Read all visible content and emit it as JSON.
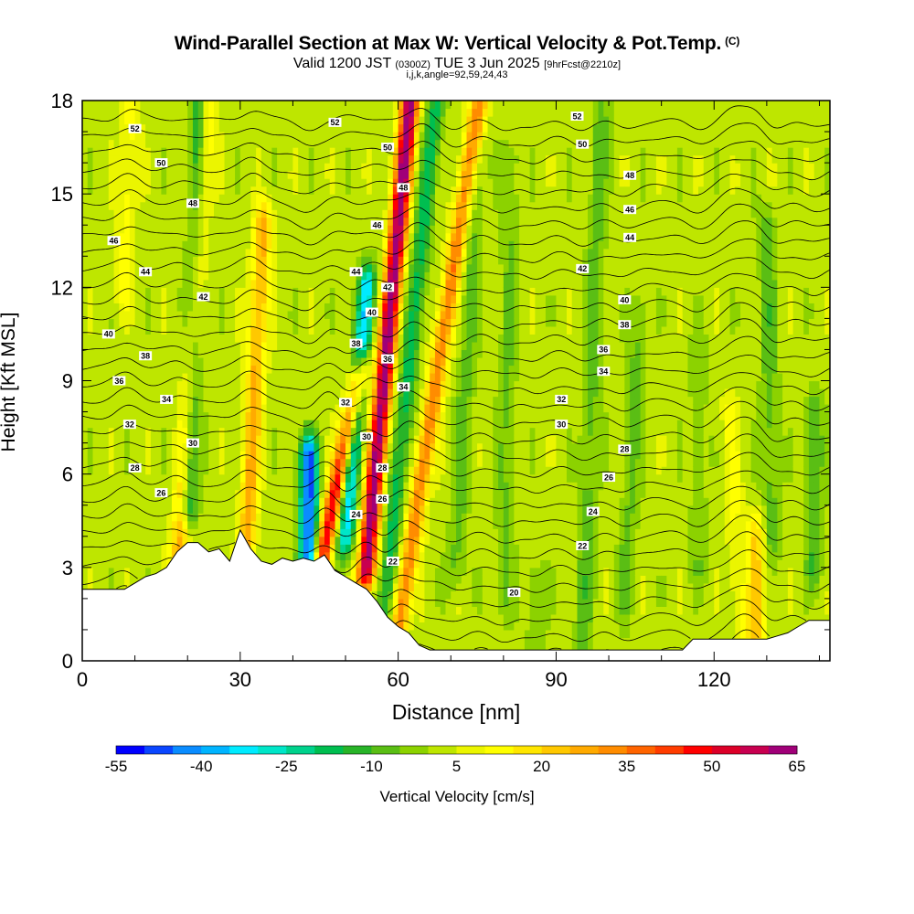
{
  "header": {
    "title": "Wind-Parallel Section at Max W: Vertical Velocity & Pot.Temp.",
    "copyright": "(C)",
    "valid_main": "Valid 1200 JST",
    "valid_utc": "(0300Z)",
    "valid_date": "TUE 3 Jun 2025",
    "fcst": "[9hrFcst@2210z]",
    "indices": "i,j,k,angle=92,59,24,43"
  },
  "chart_data": {
    "type": "heatmap",
    "title": "Wind-Parallel Section at Max W: Vertical Velocity & Pot.Temp.",
    "xlabel": "Distance [nm]",
    "ylabel": "Height [Kft MSL]",
    "xlim": [
      0,
      142
    ],
    "ylim": [
      0,
      18
    ],
    "x_ticks": [
      0,
      30,
      60,
      90,
      120
    ],
    "y_ticks": [
      0,
      3,
      6,
      9,
      12,
      15,
      18
    ],
    "colorbar": {
      "label": "Vertical Velocity [cm/s]",
      "tick_labels": [
        "-55",
        "-40",
        "-25",
        "-10",
        "5",
        "20",
        "35",
        "50",
        "65"
      ],
      "bounds": [
        -55,
        65
      ],
      "step": 5,
      "colors": [
        "#0000ff",
        "#0a46ff",
        "#0a8cff",
        "#00b4ff",
        "#00ebff",
        "#00e6c8",
        "#00d28c",
        "#00be50",
        "#28b428",
        "#5abe14",
        "#8cd200",
        "#bee600",
        "#ebf500",
        "#ffff00",
        "#ffe600",
        "#ffc800",
        "#ffaa00",
        "#ff8c00",
        "#ff6400",
        "#ff3c00",
        "#ff0000",
        "#dc0028",
        "#c80050",
        "#a00078"
      ]
    },
    "background_w": 0,
    "updrafts": [
      {
        "x": 18,
        "z0": 2,
        "z1": 18,
        "w": 28,
        "lean": 0.35
      },
      {
        "x": 31,
        "z0": 3,
        "z1": 14,
        "w": 25,
        "lean": 0.3
      },
      {
        "x": 44,
        "z0": 2,
        "z1": 9,
        "w": 48,
        "lean": 1.2
      },
      {
        "x": 54,
        "z0": 3,
        "z1": 18,
        "w": 62,
        "lean": 0.55
      },
      {
        "x": 60,
        "z0": 1,
        "z1": 18,
        "w": 32,
        "lean": 0.9
      },
      {
        "x": 128,
        "z0": 0.5,
        "z1": 4,
        "w": 18,
        "lean": 0
      },
      {
        "x": 125,
        "z0": 1,
        "z1": 8,
        "w": 8,
        "lean": -0.3
      },
      {
        "x": 8,
        "z0": 12,
        "z1": 18,
        "w": 10,
        "lean": 0.2
      }
    ],
    "downdrafts": [
      {
        "x": 20,
        "z0": 5,
        "z1": 18,
        "w": -30,
        "lean": 0.2
      },
      {
        "x": 43,
        "z0": 3,
        "z1": 6.5,
        "w": -50,
        "lean": 0
      },
      {
        "x": 50,
        "z0": 4,
        "z1": 12,
        "w": -35,
        "lean": 0.5
      },
      {
        "x": 57,
        "z0": 1,
        "z1": 18,
        "w": -20,
        "lean": 0.6
      },
      {
        "x": 71,
        "z0": 3,
        "z1": 16,
        "w": -10,
        "lean": 0.3
      },
      {
        "x": 80,
        "z0": 2,
        "z1": 16,
        "w": -8,
        "lean": 0.1
      },
      {
        "x": 95,
        "z0": 0.5,
        "z1": 18,
        "w": -10,
        "lean": 0.2
      },
      {
        "x": 103,
        "z0": 2,
        "z1": 11,
        "w": -9,
        "lean": 0.3
      },
      {
        "x": 117,
        "z0": 3,
        "z1": 10,
        "w": -6,
        "lean": 0
      },
      {
        "x": 131,
        "z0": 4,
        "z1": 14,
        "w": -10,
        "lean": -0.1
      },
      {
        "x": 139,
        "z0": 3,
        "z1": 8,
        "w": -12,
        "lean": 0
      },
      {
        "x": 86,
        "z0": 0.5,
        "z1": 2.5,
        "w": -8,
        "lean": 0
      }
    ],
    "terrain_nm": [
      0,
      2,
      4,
      6,
      8,
      10,
      12,
      14,
      16,
      18,
      20,
      22,
      24,
      26,
      28,
      30,
      32,
      34,
      36,
      38,
      40,
      42,
      44,
      46,
      48,
      50,
      52,
      54,
      56,
      58,
      60,
      62,
      64,
      66,
      68,
      70,
      72,
      74,
      76,
      78,
      80,
      82,
      84,
      86,
      88,
      90,
      92,
      94,
      96,
      98,
      100,
      102,
      104,
      106,
      108,
      110,
      112,
      114,
      116,
      118,
      120,
      122,
      124,
      126,
      128,
      130,
      132,
      134,
      136,
      138,
      140,
      142
    ],
    "terrain_kft": [
      2.3,
      2.3,
      2.3,
      2.3,
      2.3,
      2.5,
      2.7,
      2.8,
      3.0,
      3.5,
      3.8,
      3.8,
      3.5,
      3.6,
      3.2,
      4.2,
      3.6,
      3.2,
      3.1,
      3.3,
      3.2,
      3.3,
      3.2,
      3.4,
      2.9,
      2.7,
      2.5,
      2.3,
      1.9,
      1.4,
      1.1,
      0.9,
      0.5,
      0.35,
      0.35,
      0.35,
      0.35,
      0.35,
      0.35,
      0.35,
      0.35,
      0.35,
      0.35,
      0.35,
      0.35,
      0.35,
      0.35,
      0.35,
      0.35,
      0.35,
      0.35,
      0.35,
      0.35,
      0.35,
      0.35,
      0.35,
      0.35,
      0.35,
      0.7,
      0.7,
      0.7,
      0.7,
      0.7,
      0.7,
      0.7,
      0.7,
      0.8,
      0.9,
      1.1,
      1.3,
      1.3,
      1.3
    ],
    "theta": {
      "min": 20,
      "max": 52,
      "step": 1,
      "labels": [
        {
          "text": "52",
          "x": 10,
          "z": 17.1
        },
        {
          "text": "50",
          "x": 15,
          "z": 16.0
        },
        {
          "text": "48",
          "x": 21,
          "z": 14.7
        },
        {
          "text": "46",
          "x": 6,
          "z": 13.5
        },
        {
          "text": "44",
          "x": 12,
          "z": 12.5
        },
        {
          "text": "42",
          "x": 23,
          "z": 11.7
        },
        {
          "text": "40",
          "x": 5,
          "z": 10.5
        },
        {
          "text": "38",
          "x": 12,
          "z": 9.8
        },
        {
          "text": "36",
          "x": 7,
          "z": 9.0
        },
        {
          "text": "34",
          "x": 16,
          "z": 8.4
        },
        {
          "text": "32",
          "x": 9,
          "z": 7.6
        },
        {
          "text": "30",
          "x": 21,
          "z": 7.0
        },
        {
          "text": "28",
          "x": 10,
          "z": 6.2
        },
        {
          "text": "26",
          "x": 15,
          "z": 5.4
        },
        {
          "text": "52",
          "x": 48,
          "z": 17.3
        },
        {
          "text": "50",
          "x": 58,
          "z": 16.5
        },
        {
          "text": "48",
          "x": 61,
          "z": 15.2
        },
        {
          "text": "46",
          "x": 56,
          "z": 14.0
        },
        {
          "text": "44",
          "x": 52,
          "z": 12.5
        },
        {
          "text": "42",
          "x": 58,
          "z": 12.0
        },
        {
          "text": "40",
          "x": 55,
          "z": 11.2
        },
        {
          "text": "38",
          "x": 52,
          "z": 10.2
        },
        {
          "text": "36",
          "x": 58,
          "z": 9.7
        },
        {
          "text": "34",
          "x": 61,
          "z": 8.8
        },
        {
          "text": "32",
          "x": 50,
          "z": 8.3
        },
        {
          "text": "30",
          "x": 54,
          "z": 7.2
        },
        {
          "text": "28",
          "x": 57,
          "z": 6.2
        },
        {
          "text": "26",
          "x": 57,
          "z": 5.2
        },
        {
          "text": "24",
          "x": 52,
          "z": 4.7
        },
        {
          "text": "22",
          "x": 59,
          "z": 3.2
        },
        {
          "text": "20",
          "x": 82,
          "z": 2.2
        },
        {
          "text": "52",
          "x": 94,
          "z": 17.5
        },
        {
          "text": "50",
          "x": 95,
          "z": 16.6
        },
        {
          "text": "48",
          "x": 104,
          "z": 15.6
        },
        {
          "text": "46",
          "x": 104,
          "z": 14.5
        },
        {
          "text": "44",
          "x": 104,
          "z": 13.6
        },
        {
          "text": "42",
          "x": 95,
          "z": 12.6
        },
        {
          "text": "40",
          "x": 103,
          "z": 11.6
        },
        {
          "text": "38",
          "x": 103,
          "z": 10.8
        },
        {
          "text": "36",
          "x": 99,
          "z": 10.0
        },
        {
          "text": "34",
          "x": 99,
          "z": 9.3
        },
        {
          "text": "32",
          "x": 91,
          "z": 8.4
        },
        {
          "text": "30",
          "x": 91,
          "z": 7.6
        },
        {
          "text": "28",
          "x": 103,
          "z": 6.8
        },
        {
          "text": "26",
          "x": 100,
          "z": 5.9
        },
        {
          "text": "24",
          "x": 97,
          "z": 4.8
        },
        {
          "text": "22",
          "x": 95,
          "z": 3.7
        }
      ]
    }
  }
}
